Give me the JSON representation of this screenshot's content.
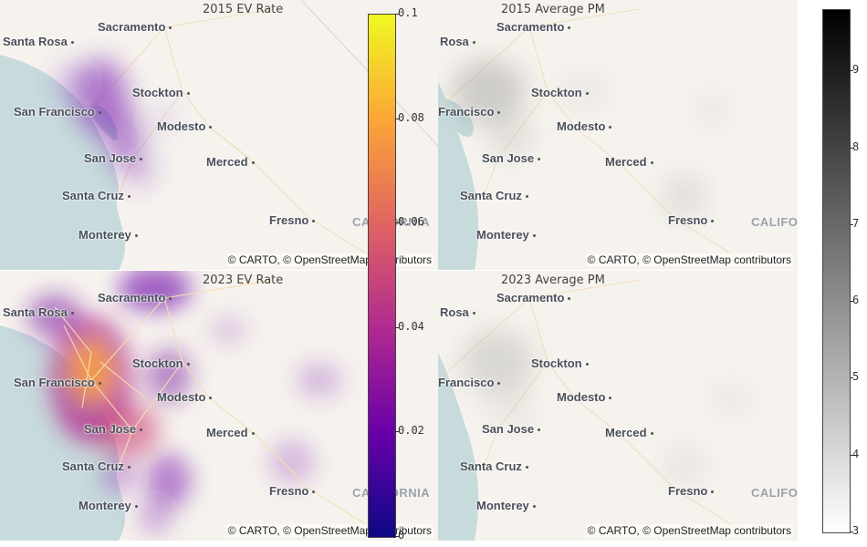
{
  "panels": [
    {
      "id": "p1",
      "title": "2015 EV Rate",
      "attribution": "© CARTO, © OpenStreetMap contributors"
    },
    {
      "id": "p2",
      "title": "2015 Average PM",
      "attribution": "© CARTO, © OpenStreetMap contributors"
    },
    {
      "id": "p3",
      "title": "2023 EV Rate",
      "attribution": "© CARTO, © OpenStreetMap contributors"
    },
    {
      "id": "p4",
      "title": "2023 Average PM",
      "attribution": "© CARTO, © OpenStreetMap contributors"
    }
  ],
  "cities_left": [
    "Sacramento",
    "Santa Rosa",
    "Stockton",
    "San Francisco",
    "Modesto",
    "San Jose",
    "Merced",
    "Santa Cruz",
    "Fresno",
    "Monterey"
  ],
  "cities_right": [
    "Sacramento",
    "Rosa",
    "Stockton",
    "Francisco",
    "Modesto",
    "San Jose",
    "Merced",
    "Santa Cruz",
    "Fresno",
    "Monterey"
  ],
  "state_label_left": "CALIFORNIA",
  "state_label_right": "CALIFOR",
  "colorbar_ev": {
    "colorscale": "plasma",
    "colors": [
      "#0d0887",
      "#6a00a8",
      "#b12a90",
      "#e16462",
      "#fca636",
      "#f0f921"
    ],
    "range": [
      0,
      0.1
    ],
    "ticks": [
      "0",
      "0.02",
      "0.04",
      "0.06",
      "0.08",
      "0.1"
    ]
  },
  "colorbar_pm": {
    "colorscale": "greys",
    "colors": [
      "#ffffff",
      "#000000"
    ],
    "range": [
      3,
      9.8
    ],
    "ticks": [
      "3",
      "4",
      "5",
      "6",
      "7",
      "8",
      "9"
    ]
  },
  "map_colors": {
    "land": "#f6f3ee",
    "water": "#c7dbdc",
    "roads": "#f3d9a6"
  }
}
